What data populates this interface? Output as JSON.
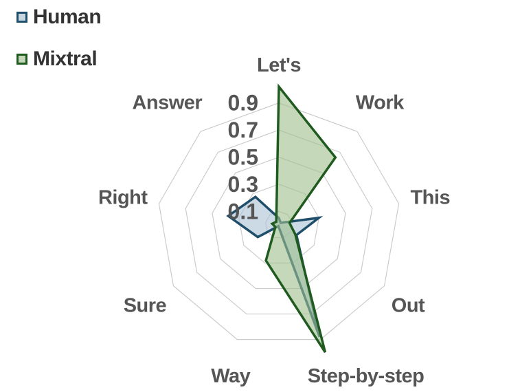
{
  "chart_data": {
    "type": "radar",
    "categories": [
      "Let's",
      "Work",
      "This",
      "Out",
      "Step-by-step",
      "Way",
      "Sure",
      "Right",
      "Answer"
    ],
    "series": [
      {
        "name": "Human",
        "values": [
          0.05,
          0.02,
          0.3,
          0.15,
          0.88,
          0.01,
          0.18,
          0.38,
          0.27
        ],
        "color": "#1f4e6b",
        "fill": "#a8c1d4"
      },
      {
        "name": "Mixtral",
        "values": [
          1.02,
          0.65,
          0.08,
          0.14,
          1.0,
          0.28,
          0.03,
          0.05,
          0.03
        ],
        "color": "#1f5a1f",
        "fill": "#9ebf8c"
      }
    ],
    "ticks": [
      "0.1",
      "0.3",
      "0.5",
      "0.7",
      "0.9"
    ],
    "rmax": 1.0,
    "grid": true,
    "legend": "top-left",
    "colors": {
      "grid": "#cccccc",
      "text": "#555555"
    }
  }
}
